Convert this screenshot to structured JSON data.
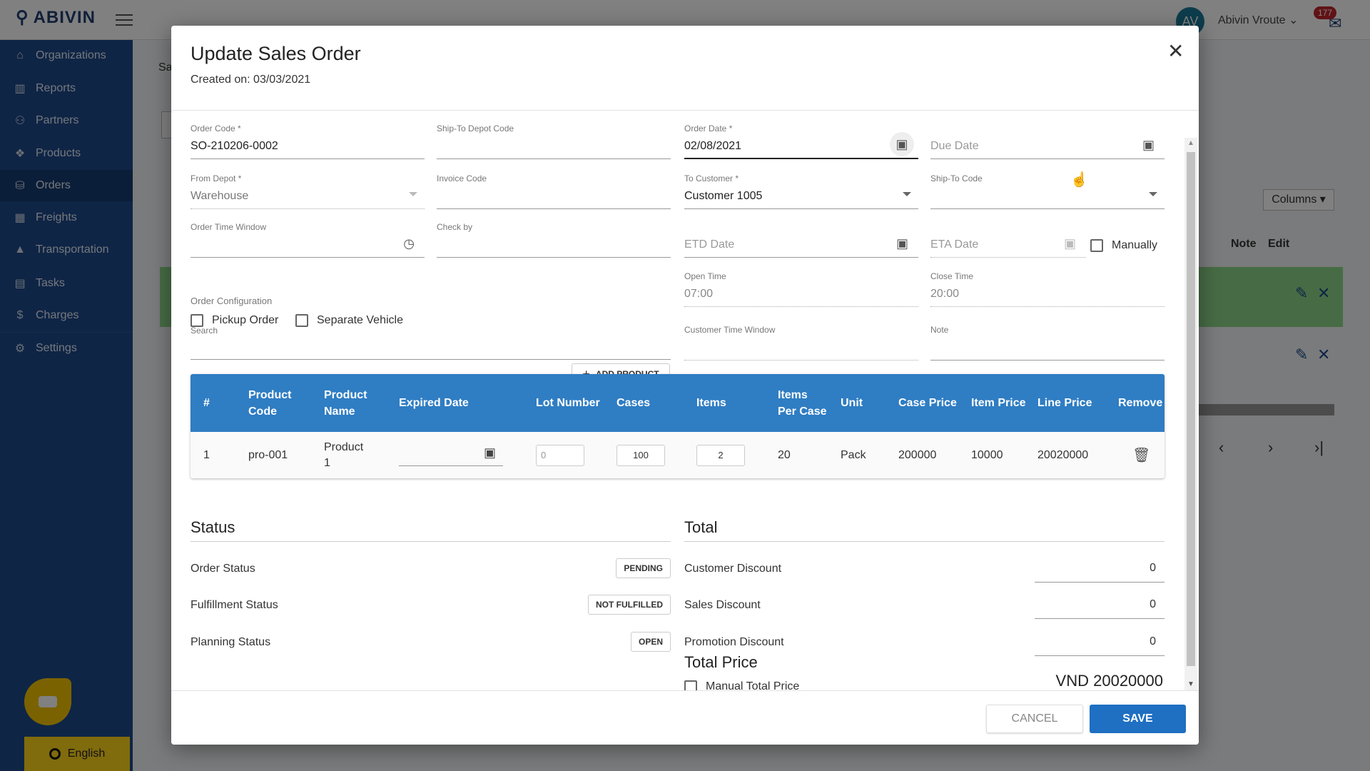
{
  "app": {
    "logo": "ABIVIN",
    "user_initials": "AV",
    "user_name": "Abivin Vroute",
    "notification_count": "177",
    "language": "English"
  },
  "sidebar": {
    "items": [
      {
        "label": "Organizations",
        "icon": "home-icon"
      },
      {
        "label": "Reports",
        "icon": "bar-chart-icon"
      },
      {
        "label": "Partners",
        "icon": "users-icon"
      },
      {
        "label": "Products",
        "icon": "boxes-icon"
      },
      {
        "label": "Orders",
        "icon": "orders-icon",
        "active": true
      },
      {
        "label": "Freights",
        "icon": "pallet-icon"
      },
      {
        "label": "Transportation",
        "icon": "road-icon"
      },
      {
        "label": "Tasks",
        "icon": "calendar-icon"
      },
      {
        "label": "Charges",
        "icon": "hand-dollar-icon"
      },
      {
        "label": "Settings",
        "icon": "gear-icon"
      }
    ]
  },
  "background": {
    "crumb": "Sa",
    "columns_label": "Columns",
    "note_header": "Note",
    "edit_header": "Edit"
  },
  "modal": {
    "title": "Update Sales Order",
    "created": "Created on: 03/03/2021",
    "fields": {
      "order_code": {
        "label": "Order Code *",
        "value": "SO-210206-0002"
      },
      "ship_to_depot_code": {
        "label": "Ship-To Depot Code",
        "value": ""
      },
      "order_date": {
        "label": "Order Date *",
        "value": "02/08/2021"
      },
      "due_date": {
        "placeholder": "Due Date"
      },
      "from_depot": {
        "label": "From Depot *",
        "value": "Warehouse"
      },
      "invoice_code": {
        "label": "Invoice Code",
        "value": ""
      },
      "to_customer": {
        "label": "To Customer *",
        "value": "Customer 1005"
      },
      "ship_to_code": {
        "label": "Ship-To Code",
        "value": ""
      },
      "order_time_window": {
        "label": "Order Time Window",
        "value": ""
      },
      "check_by": {
        "label": "Check by",
        "value": ""
      },
      "etd_date": {
        "placeholder": "ETD Date"
      },
      "eta_date": {
        "placeholder": "ETA Date"
      },
      "manually": "Manually",
      "order_configuration": "Order Configuration",
      "pickup_order": "Pickup Order",
      "separate_vehicle": "Separate Vehicle",
      "open_time": {
        "label": "Open Time",
        "value": "07:00"
      },
      "close_time": {
        "label": "Close Time",
        "value": "20:00"
      },
      "search": {
        "label": "Search",
        "value": ""
      },
      "customer_time_window": {
        "label": "Customer Time Window",
        "value": ""
      },
      "note": {
        "label": "Note",
        "value": ""
      }
    },
    "add_product": "ADD PRODUCT",
    "table": {
      "headers": [
        "#",
        "Product Code",
        "Product Name",
        "Expired Date",
        "Lot Number",
        "Cases",
        "Items",
        "Items Per Case",
        "Unit",
        "Case Price",
        "Item Price",
        "Line Price",
        "Remove"
      ],
      "rows": [
        {
          "index": "1",
          "product_code": "pro-001",
          "product_name": "Product 1",
          "expired_date": "",
          "lot_number": "0",
          "cases": "100",
          "items": "2",
          "items_per_case": "20",
          "unit": "Pack",
          "case_price": "200000",
          "item_price": "10000",
          "line_price": "20020000"
        }
      ]
    },
    "status": {
      "heading": "Status",
      "order_status": {
        "label": "Order Status",
        "value": "PENDING"
      },
      "fulfillment_status": {
        "label": "Fulfillment Status",
        "value": "NOT FULFILLED"
      },
      "planning_status": {
        "label": "Planning Status",
        "value": "OPEN"
      }
    },
    "total": {
      "heading": "Total",
      "customer_discount": {
        "label": "Customer Discount",
        "value": "0"
      },
      "sales_discount": {
        "label": "Sales Discount",
        "value": "0"
      },
      "promotion_discount": {
        "label": "Promotion Discount",
        "value": "0"
      },
      "total_price_heading": "Total Price",
      "total_price": "VND 20020000",
      "manual_total_price": "Manual Total Price"
    },
    "cancel": "CANCEL",
    "save": "SAVE"
  },
  "colors": {
    "sidebar": "#1d4a8c",
    "table_header": "#2f7dc3",
    "save": "#1f6fc2",
    "language_bar": "#ffd51a"
  }
}
